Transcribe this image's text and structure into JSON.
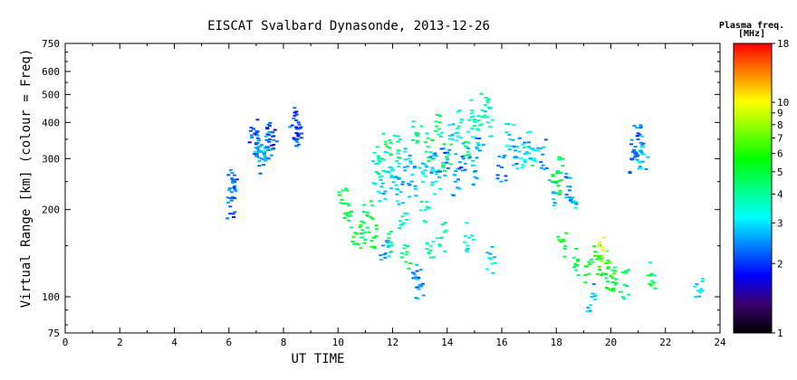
{
  "chart_data": {
    "type": "scatter",
    "title": "EISCAT Svalbard Dynasonde, 2013-12-26",
    "xlabel": "UT TIME",
    "ylabel": "Virtual Range [km] (colour = Freq)",
    "xlim": [
      0,
      24
    ],
    "x_ticks": [
      "0",
      "2",
      "4",
      "6",
      "8",
      "10",
      "12",
      "14",
      "16",
      "18",
      "20",
      "22",
      "24"
    ],
    "ylim": [
      75,
      750
    ],
    "y_scale": "log",
    "y_ticks": [
      "75",
      "100",
      "200",
      "300",
      "400",
      "500",
      "600",
      "750"
    ],
    "grid": false,
    "colorbar": {
      "title": "Plasma freq.",
      "unit": "[MHz]",
      "scale": "log",
      "range": [
        1,
        18
      ],
      "ticks": [
        "1",
        "2",
        "3",
        "4",
        "5",
        "6",
        "7",
        "8",
        "9",
        "10",
        "18"
      ],
      "colors": [
        "#000000",
        "#3a006e",
        "#0000ff",
        "#0080ff",
        "#00ffff",
        "#00ff80",
        "#00ff00",
        "#80ff00",
        "#ffff00",
        "#ff8000",
        "#ff0000"
      ]
    },
    "series": [
      {
        "points": [
          [
            6.05,
            205,
            2.2
          ],
          [
            6.1,
            230,
            2.4
          ],
          [
            6.15,
            250,
            2.3
          ]
        ]
      },
      {
        "points": [
          [
            6.9,
            380,
            2.0
          ],
          [
            7.0,
            340,
            2.3
          ],
          [
            7.1,
            320,
            2.5
          ],
          [
            7.2,
            300,
            2.4
          ],
          [
            7.3,
            310,
            2.6
          ],
          [
            7.4,
            330,
            2.5
          ],
          [
            7.5,
            350,
            2.2
          ],
          [
            7.6,
            370,
            2.1
          ]
        ]
      },
      {
        "points": [
          [
            8.4,
            350,
            2.2
          ],
          [
            8.5,
            380,
            2.0
          ],
          [
            8.55,
            400,
            2.1
          ]
        ]
      },
      {
        "points": [
          [
            10.2,
            210,
            5.0
          ],
          [
            10.4,
            190,
            4.5
          ],
          [
            10.7,
            165,
            5.5
          ],
          [
            10.9,
            170,
            4.6
          ]
        ]
      },
      {
        "points": [
          [
            11.1,
            190,
            4.8
          ],
          [
            11.3,
            160,
            5.2
          ],
          [
            11.4,
            270,
            3.2
          ],
          [
            11.5,
            300,
            4.0
          ],
          [
            11.6,
            240,
            2.8
          ],
          [
            11.7,
            140,
            2.5
          ],
          [
            11.8,
            330,
            4.5
          ],
          [
            11.9,
            280,
            3.0
          ],
          [
            11.95,
            150,
            4.2
          ]
        ]
      },
      {
        "points": [
          [
            12.1,
            260,
            3.4
          ],
          [
            12.2,
            320,
            4.1
          ],
          [
            12.3,
            230,
            2.8
          ],
          [
            12.4,
            180,
            3.6
          ],
          [
            12.5,
            140,
            4.4
          ],
          [
            12.6,
            300,
            3.0
          ],
          [
            12.7,
            250,
            2.6
          ],
          [
            12.8,
            120,
            2.4
          ],
          [
            12.9,
            360,
            4.2
          ]
        ]
      },
      {
        "points": [
          [
            13.0,
            110,
            2.6
          ],
          [
            13.1,
            270,
            3.2
          ],
          [
            13.2,
            200,
            4.0
          ],
          [
            13.3,
            330,
            4.6
          ],
          [
            13.4,
            150,
            3.8
          ],
          [
            13.5,
            300,
            2.7
          ],
          [
            13.6,
            250,
            3.3
          ],
          [
            13.7,
            380,
            4.3
          ],
          [
            13.8,
            160,
            3.9
          ],
          [
            13.9,
            290,
            2.5
          ]
        ]
      },
      {
        "points": [
          [
            14.0,
            300,
            4.5
          ],
          [
            14.2,
            350,
            3.0
          ],
          [
            14.3,
            250,
            2.6
          ],
          [
            14.5,
            400,
            3.5
          ],
          [
            14.6,
            300,
            2.4
          ],
          [
            14.7,
            330,
            4.0
          ],
          [
            14.8,
            160,
            3.3
          ],
          [
            14.9,
            430,
            3.8
          ]
        ]
      },
      {
        "points": [
          [
            15.0,
            270,
            2.7
          ],
          [
            15.1,
            380,
            3.6
          ],
          [
            15.2,
            320,
            2.5
          ],
          [
            15.4,
            460,
            4.2
          ],
          [
            15.5,
            400,
            3.1
          ],
          [
            15.6,
            135,
            3.0
          ]
        ]
      },
      {
        "points": [
          [
            16.0,
            280,
            2.4
          ],
          [
            16.3,
            350,
            3.2
          ],
          [
            16.5,
            320,
            2.6
          ],
          [
            16.7,
            300,
            3.4
          ],
          [
            17.0,
            330,
            2.8
          ],
          [
            17.2,
            300,
            3.3
          ],
          [
            17.5,
            310,
            2.5
          ]
        ]
      },
      {
        "points": [
          [
            17.9,
            230,
            2.6
          ],
          [
            18.0,
            250,
            5.0
          ],
          [
            18.1,
            270,
            4.6
          ],
          [
            18.2,
            155,
            5.5
          ],
          [
            18.5,
            240,
            2.4
          ],
          [
            18.6,
            220,
            2.8
          ],
          [
            18.7,
            130,
            4.7
          ]
        ]
      },
      {
        "points": [
          [
            19.2,
            120,
            5.0
          ],
          [
            19.3,
            100,
            2.8
          ],
          [
            19.5,
            135,
            5.8
          ],
          [
            19.7,
            145,
            9.0
          ],
          [
            19.8,
            120,
            4.8
          ],
          [
            20.0,
            118,
            6.0
          ],
          [
            20.2,
            115,
            4.5
          ],
          [
            20.5,
            110,
            4.2
          ]
        ]
      },
      {
        "points": [
          [
            20.8,
            300,
            2.2
          ],
          [
            20.9,
            330,
            2.5
          ],
          [
            21.0,
            350,
            2.3
          ],
          [
            21.1,
            320,
            2.6
          ],
          [
            21.2,
            310,
            3.0
          ],
          [
            21.5,
            120,
            4.5
          ],
          [
            23.2,
            105,
            3.1
          ]
        ]
      }
    ]
  }
}
